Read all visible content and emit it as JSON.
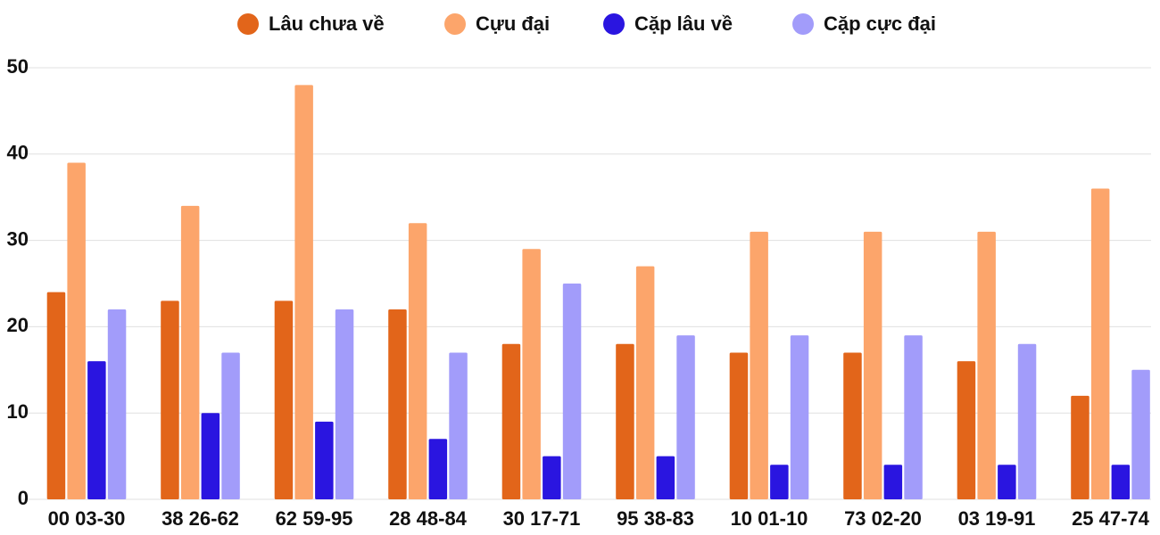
{
  "chart_data": {
    "type": "bar",
    "categories": [
      "00 03-30",
      "38 26-62",
      "62 59-95",
      "28 48-84",
      "30 17-71",
      "95 38-83",
      "10 01-10",
      "73 02-20",
      "03 19-91",
      "25 47-74"
    ],
    "series": [
      {
        "name": "Lâu chưa về",
        "color": "#e2651a",
        "values": [
          24,
          23,
          23,
          22,
          18,
          18,
          17,
          17,
          16,
          12
        ]
      },
      {
        "name": "Cựu đại",
        "color": "#fca56b",
        "values": [
          39,
          34,
          48,
          32,
          29,
          27,
          31,
          31,
          31,
          36
        ]
      },
      {
        "name": "Cặp lâu về",
        "color": "#2a15e0",
        "values": [
          16,
          10,
          9,
          7,
          5,
          5,
          4,
          4,
          4,
          4
        ]
      },
      {
        "name": "Cặp cực đại",
        "color": "#a29cfa",
        "values": [
          22,
          17,
          22,
          17,
          25,
          19,
          19,
          19,
          18,
          15
        ]
      }
    ],
    "ylim": [
      0,
      50
    ],
    "yticks": [
      0,
      10,
      20,
      30,
      40,
      50
    ],
    "grid": true,
    "legend": "top"
  }
}
